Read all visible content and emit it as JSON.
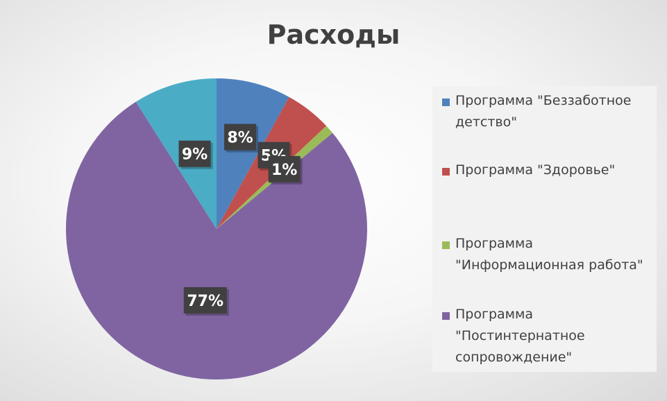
{
  "chart_data": {
    "type": "pie",
    "title": "Расходы",
    "slices": [
      {
        "label": "Программа \"Беззаботное детство\"",
        "value": 8,
        "display": "8%",
        "color": "#4f81bd"
      },
      {
        "label": "Программа \"Здоровье\"",
        "value": 5,
        "display": "5%",
        "color": "#c0504d"
      },
      {
        "label": "Программа \"Информационная работа\"",
        "value": 1,
        "display": "1%",
        "color": "#9bbb59"
      },
      {
        "label": "Программа \"Постинтернатное сопровождение\"",
        "value": 77,
        "display": "77%",
        "color": "#8064a2"
      },
      {
        "label": "",
        "value": 9,
        "display": "9%",
        "color": "#4bacc6"
      }
    ],
    "legend_position": "right",
    "data_label_style": "dark boxes with white bold text"
  }
}
